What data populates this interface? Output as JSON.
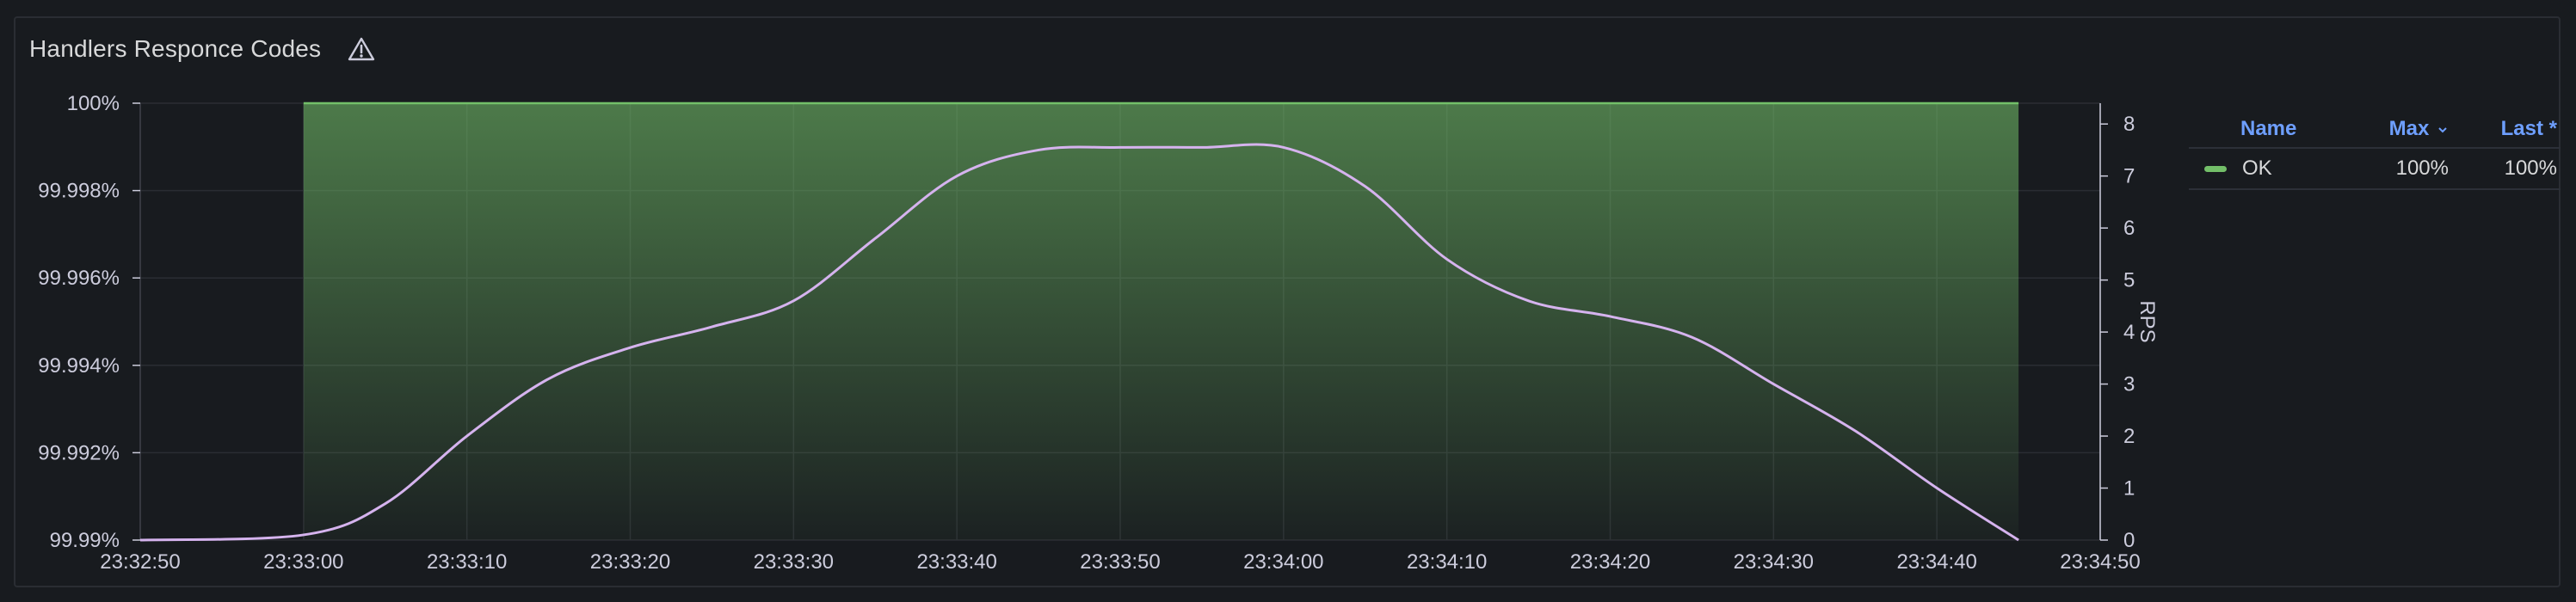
{
  "panel": {
    "title": "Handlers Responce Codes",
    "warning_icon": "warning-triangle-icon"
  },
  "legend": {
    "columns": {
      "name": "Name",
      "max": "Max",
      "last": "Last *"
    },
    "sort_icon": "chevron-down-icon",
    "rows": [
      {
        "name": "OK",
        "max": "100%",
        "last": "100%",
        "color": "#73bf69"
      }
    ]
  },
  "chart_data": {
    "type": "area",
    "title": "",
    "x_ticks": [
      "23:32:50",
      "23:33:00",
      "23:33:10",
      "23:33:20",
      "23:33:30",
      "23:33:40",
      "23:33:50",
      "23:34:00",
      "23:34:10",
      "23:34:20",
      "23:34:30",
      "23:34:40",
      "23:34:50"
    ],
    "left_axis": {
      "ticks": [
        "100%",
        "99.998%",
        "99.996%",
        "99.994%",
        "99.992%",
        "99.99%"
      ],
      "ylim": [
        99.99,
        100
      ],
      "unit": "%"
    },
    "right_axis": {
      "label": "RPS",
      "ticks": [
        "8",
        "7",
        "6",
        "5",
        "4",
        "3",
        "2",
        "1",
        "0"
      ],
      "ylim": [
        0,
        8.4
      ]
    },
    "grid": true,
    "legend_placement": "right",
    "series": [
      {
        "name": "OK",
        "axis": "left",
        "color": "#73bf69",
        "x": [
          "23:33:00",
          "23:34:45"
        ],
        "values": [
          100,
          100
        ]
      },
      {
        "axis": "right",
        "color": "#d5b3ee",
        "x": [
          "23:32:50",
          "23:33:00",
          "23:33:05",
          "23:33:10",
          "23:33:15",
          "23:33:20",
          "23:33:25",
          "23:33:30",
          "23:33:35",
          "23:33:40",
          "23:33:45",
          "23:33:50",
          "23:33:55",
          "23:34:00",
          "23:34:05",
          "23:34:10",
          "23:34:15",
          "23:34:20",
          "23:34:25",
          "23:34:30",
          "23:34:35",
          "23:34:40",
          "23:34:45"
        ],
        "values": [
          0.0,
          0.1,
          0.7,
          2.0,
          3.1,
          3.7,
          4.1,
          4.6,
          5.8,
          7.0,
          7.5,
          7.55,
          7.55,
          7.55,
          6.8,
          5.4,
          4.6,
          4.3,
          3.9,
          3.0,
          2.1,
          1.0,
          0.0
        ]
      }
    ]
  }
}
